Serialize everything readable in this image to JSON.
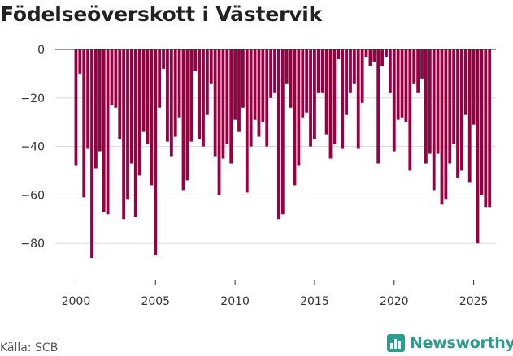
{
  "title": "Födelseöverskott i Västervik",
  "source": "Källa: SCB",
  "brand": {
    "name": "Newsworthy",
    "icon": "bar-chart-icon",
    "color": "#2b9c8e"
  },
  "chart_data": {
    "type": "bar",
    "title": "Födelseöverskott i Västervik",
    "xlabel": "",
    "ylabel": "",
    "bar_color": "#990042",
    "grid": true,
    "x_start": 2000.0,
    "x_step": 0.25,
    "xlim": [
      1998.7,
      2026.4
    ],
    "ylim": [
      -95,
      0
    ],
    "yticks": [
      0,
      -20,
      -40,
      -60,
      -80
    ],
    "ytick_labels": [
      "0",
      "−20",
      "−40",
      "−60",
      "−80"
    ],
    "xticks": [
      2000,
      2005,
      2010,
      2015,
      2020,
      2025
    ],
    "xtick_labels": [
      "2000",
      "2005",
      "2010",
      "2015",
      "2020",
      "2025"
    ],
    "values": [
      -48,
      -10,
      -61,
      -41,
      -86,
      -49,
      -42,
      -67,
      -68,
      -23,
      -24,
      -37,
      -70,
      -62,
      -47,
      -69,
      -52,
      -34,
      -39,
      -56,
      -85,
      -24,
      -8,
      -38,
      -44,
      -36,
      -28,
      -58,
      -54,
      -38,
      -9,
      -37,
      -40,
      -27,
      -14,
      -44,
      -60,
      -45,
      -39,
      -47,
      -29,
      -34,
      -24,
      -59,
      -40,
      -29,
      -36,
      -30,
      -40,
      -20,
      -18,
      -70,
      -68,
      -14,
      -24,
      -56,
      -48,
      -28,
      -26,
      -40,
      -37,
      -18,
      -18,
      -35,
      -45,
      -39,
      -4,
      -41,
      -27,
      -18,
      -14,
      -41,
      -22,
      -3,
      -7,
      -5,
      -47,
      -7,
      -3,
      -18,
      -42,
      -29,
      -28,
      -30,
      -50,
      -14,
      -18,
      -12,
      -47,
      -43,
      -58,
      -43,
      -64,
      -62,
      -47,
      -39,
      -53,
      -50,
      -27,
      -55,
      -31,
      -80,
      -60,
      -65,
      -65
    ]
  }
}
